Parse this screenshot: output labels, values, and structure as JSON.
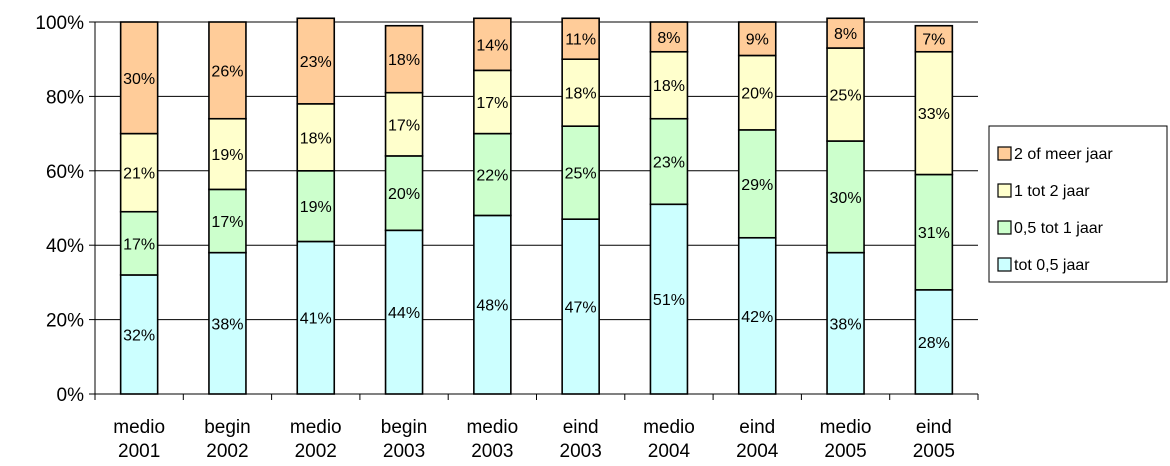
{
  "chart_data": {
    "type": "bar",
    "stacked": true,
    "normalized": true,
    "categories": [
      [
        "medio",
        "2001"
      ],
      [
        "begin",
        "2002"
      ],
      [
        "medio",
        "2002"
      ],
      [
        "begin",
        "2003"
      ],
      [
        "medio",
        "2003"
      ],
      [
        "eind",
        "2003"
      ],
      [
        "medio",
        "2004"
      ],
      [
        "eind",
        "2004"
      ],
      [
        "medio",
        "2005"
      ],
      [
        "eind",
        "2005"
      ]
    ],
    "series": [
      {
        "name": "tot 0,5  jaar",
        "color": "#ccffff",
        "values": [
          32,
          38,
          41,
          44,
          48,
          47,
          51,
          42,
          38,
          28
        ]
      },
      {
        "name": "0,5 tot 1 jaar",
        "color": "#ccffcc",
        "values": [
          17,
          17,
          19,
          20,
          22,
          25,
          23,
          29,
          30,
          31
        ]
      },
      {
        "name": "1 tot 2 jaar",
        "color": "#ffffcc",
        "values": [
          21,
          19,
          18,
          17,
          17,
          18,
          18,
          20,
          25,
          33
        ]
      },
      {
        "name": "2 of meer jaar",
        "color": "#ffcc99",
        "values": [
          30,
          26,
          23,
          18,
          14,
          11,
          8,
          9,
          8,
          7
        ]
      }
    ],
    "ylim": [
      0,
      100
    ],
    "yticks": [
      "0%",
      "20%",
      "40%",
      "60%",
      "80%",
      "100%"
    ],
    "grid": true,
    "legend_position": "right",
    "title": "",
    "xlabel": "",
    "ylabel": ""
  }
}
